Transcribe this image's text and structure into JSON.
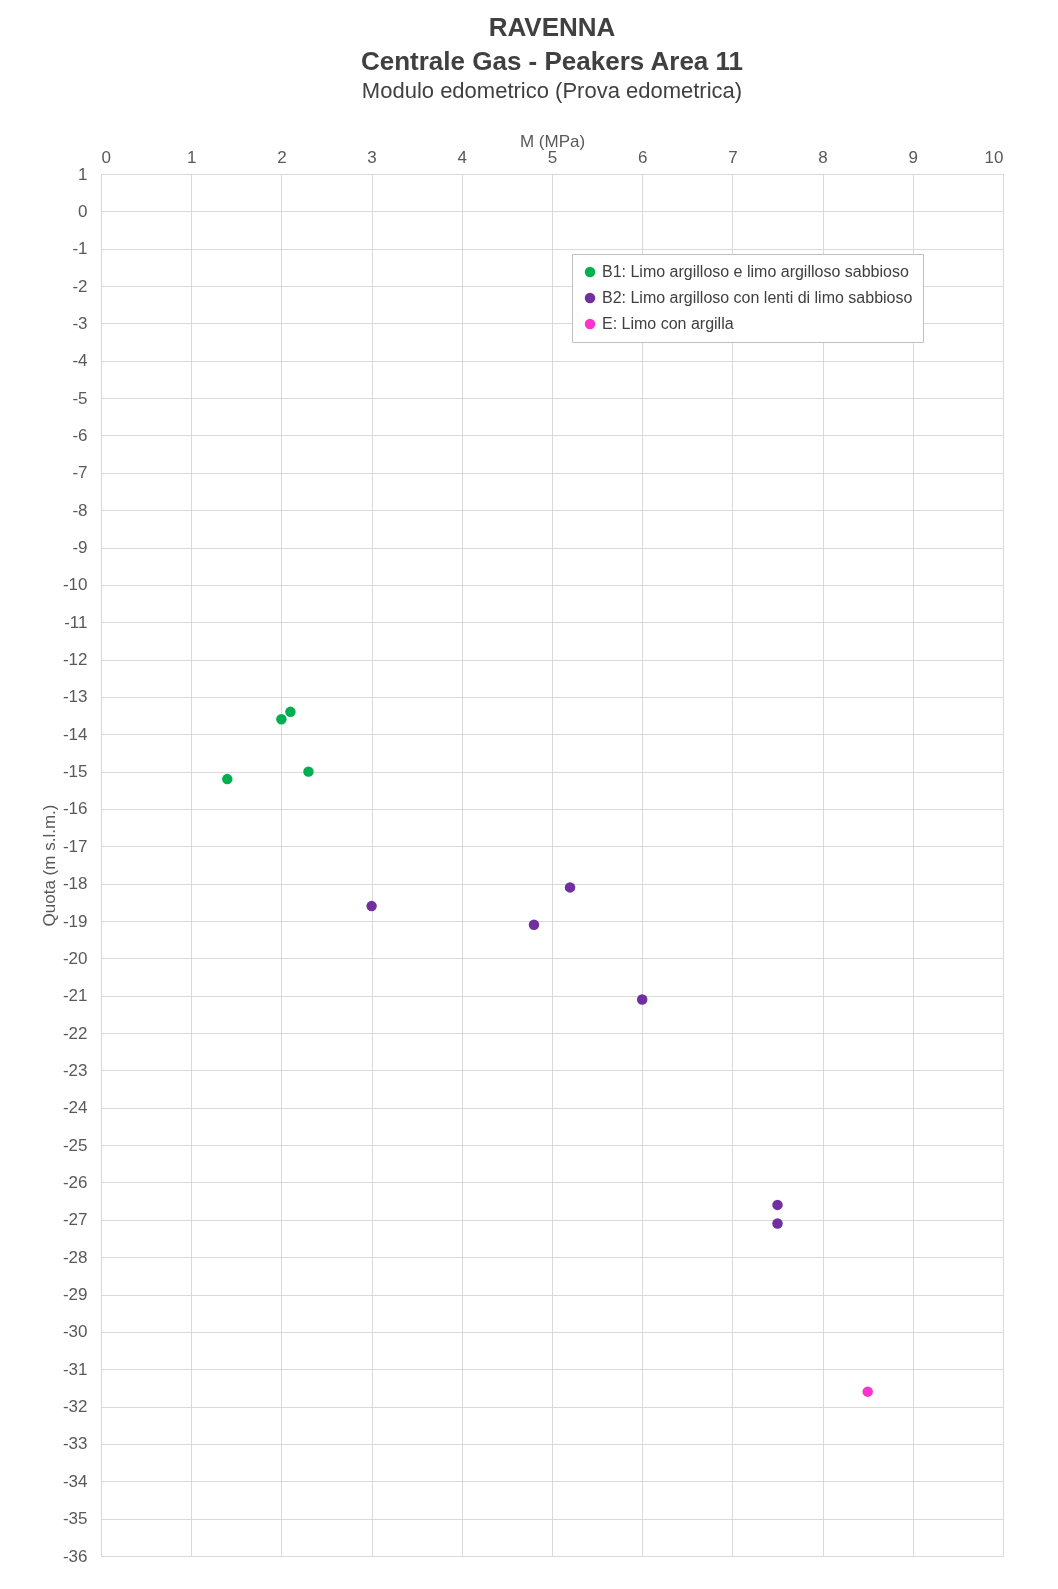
{
  "chart_data": {
    "type": "scatter",
    "title": "RAVENNA\nCentrale Gas - Peakers Area 11",
    "subtitle": "Modulo edometrico (Prova edometrica)",
    "xlabel": "M (MPa)",
    "ylabel": "Quota (m s.l.m.)",
    "xlim": [
      0,
      10
    ],
    "xticks": [
      0,
      1,
      2,
      3,
      4,
      5,
      6,
      7,
      8,
      9,
      10
    ],
    "ylim": [
      -36,
      1
    ],
    "yticks": [
      1,
      0,
      -1,
      -2,
      -3,
      -4,
      -5,
      -6,
      -7,
      -8,
      -9,
      -10,
      -11,
      -12,
      -13,
      -14,
      -15,
      -16,
      -17,
      -18,
      -19,
      -20,
      -21,
      -22,
      -23,
      -24,
      -25,
      -26,
      -27,
      -28,
      -29,
      -30,
      -31,
      -32,
      -33,
      -34,
      -35,
      -36
    ],
    "grid": true,
    "legend": "top right",
    "marker": "circle",
    "series": [
      {
        "name": "B1: Limo argilloso e limo argilloso sabbioso",
        "color": "#00b050",
        "x": [
          2.1,
          2.0,
          2.3,
          1.4
        ],
        "values": [
          -13.4,
          -13.6,
          -15.0,
          -15.2
        ]
      },
      {
        "name": "B2: Limo argilloso con lenti di limo sabbioso",
        "color": "#7030a0",
        "x": [
          3.0,
          5.2,
          4.8,
          6.0,
          7.5,
          7.5
        ],
        "values": [
          -18.6,
          -18.1,
          -19.1,
          -21.1,
          -26.6,
          -27.1
        ]
      },
      {
        "name": "E: Limo con argilla",
        "color": "#ff33cc",
        "x": [
          8.5
        ],
        "values": [
          -31.6
        ]
      }
    ]
  }
}
